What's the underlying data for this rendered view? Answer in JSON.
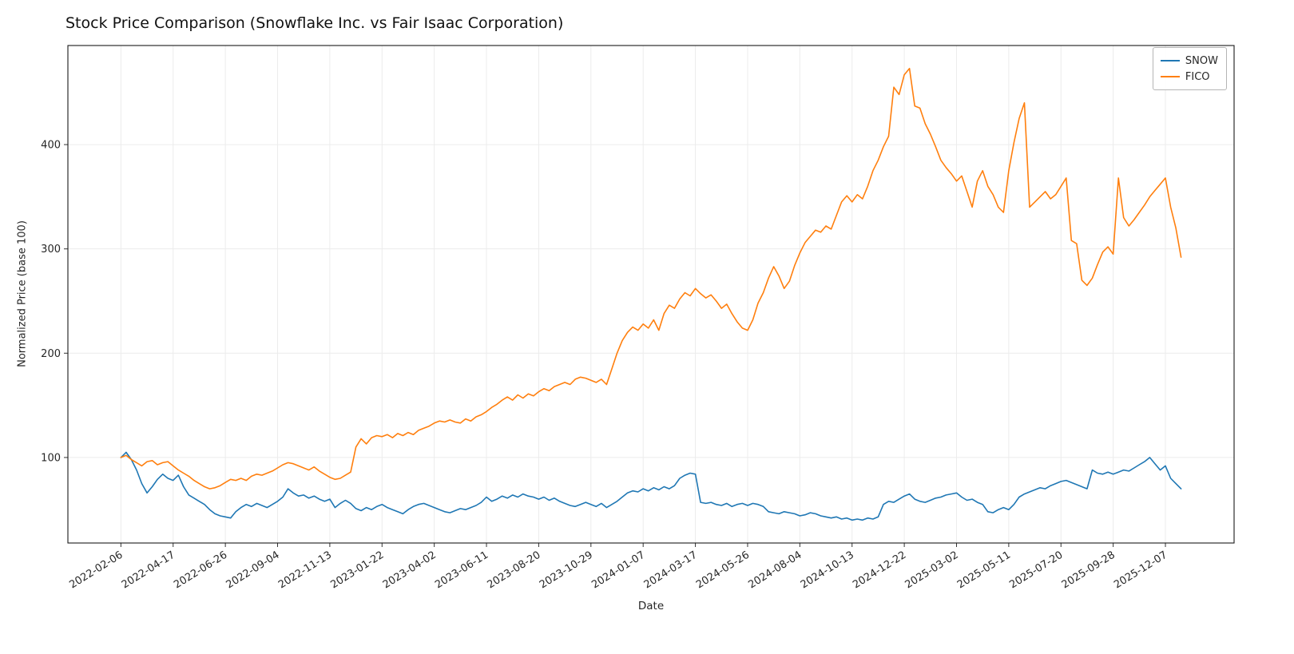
{
  "chart_data": {
    "type": "line",
    "title": "Stock Price Comparison (Snowflake Inc. vs Fair Isaac Corporation)",
    "xlabel": "Date",
    "ylabel": "Normalized Price (base 100)",
    "grid": true,
    "legend_position": "upper right",
    "ylim": [
      18,
      495
    ],
    "y_ticks": [
      100,
      200,
      300,
      400
    ],
    "x_tick_step": 10,
    "x_tick_labels": [
      "2022-02-06",
      "2022-04-17",
      "2022-06-26",
      "2022-09-04",
      "2022-11-13",
      "2023-01-22",
      "2023-04-02",
      "2023-06-11",
      "2023-08-20",
      "2023-10-29",
      "2024-01-07",
      "2024-03-17",
      "2024-05-26",
      "2024-08-04",
      "2024-10-13",
      "2024-12-22",
      "2025-03-02",
      "2025-05-11",
      "2025-07-20",
      "2025-09-28",
      "2025-12-07"
    ],
    "series": [
      {
        "name": "SNOW",
        "color": "#1f77b4",
        "values": [
          100,
          105,
          98,
          88,
          75,
          66,
          72,
          79,
          84,
          80,
          78,
          83,
          72,
          64,
          61,
          58,
          55,
          50,
          46,
          44,
          43,
          42,
          48,
          52,
          55,
          53,
          56,
          54,
          52,
          55,
          58,
          62,
          70,
          66,
          63,
          64,
          61,
          63,
          60,
          58,
          60,
          52,
          56,
          59,
          56,
          51,
          49,
          52,
          50,
          53,
          55,
          52,
          50,
          48,
          46,
          50,
          53,
          55,
          56,
          54,
          52,
          50,
          48,
          47,
          49,
          51,
          50,
          52,
          54,
          57,
          62,
          58,
          60,
          63,
          61,
          64,
          62,
          65,
          63,
          62,
          60,
          62,
          59,
          61,
          58,
          56,
          54,
          53,
          55,
          57,
          55,
          53,
          56,
          52,
          55,
          58,
          62,
          66,
          68,
          67,
          70,
          68,
          71,
          69,
          72,
          70,
          73,
          80,
          83,
          85,
          84,
          57,
          56,
          57,
          55,
          54,
          56,
          53,
          55,
          56,
          54,
          56,
          55,
          53,
          48,
          47,
          46,
          48,
          47,
          46,
          44,
          45,
          47,
          46,
          44,
          43,
          42,
          43,
          41,
          42,
          40,
          41,
          40,
          42,
          41,
          43,
          55,
          58,
          57,
          60,
          63,
          65,
          60,
          58,
          57,
          59,
          61,
          62,
          64,
          65,
          66,
          62,
          59,
          60,
          57,
          55,
          48,
          47,
          50,
          52,
          50,
          55,
          62,
          65,
          67,
          69,
          71,
          70,
          73,
          75,
          77,
          78,
          76,
          74,
          72,
          70,
          88,
          85,
          84,
          86,
          84,
          86,
          88,
          87,
          90,
          93,
          96,
          100,
          94,
          88,
          92,
          80,
          75,
          70
        ]
      },
      {
        "name": "FICO",
        "color": "#ff7f0e",
        "values": [
          100,
          102,
          98,
          95,
          92,
          96,
          97,
          93,
          95,
          96,
          92,
          88,
          85,
          82,
          78,
          75,
          72,
          70,
          71,
          73,
          76,
          79,
          78,
          80,
          78,
          82,
          84,
          83,
          85,
          87,
          90,
          93,
          95,
          94,
          92,
          90,
          88,
          91,
          87,
          84,
          81,
          79,
          80,
          83,
          86,
          110,
          118,
          113,
          119,
          121,
          120,
          122,
          119,
          123,
          121,
          124,
          122,
          126,
          128,
          130,
          133,
          135,
          134,
          136,
          134,
          133,
          137,
          135,
          139,
          141,
          144,
          148,
          151,
          155,
          158,
          155,
          160,
          157,
          161,
          159,
          163,
          166,
          164,
          168,
          170,
          172,
          170,
          175,
          177,
          176,
          174,
          172,
          175,
          170,
          185,
          200,
          212,
          220,
          225,
          222,
          228,
          224,
          232,
          222,
          238,
          246,
          243,
          252,
          258,
          255,
          262,
          257,
          253,
          256,
          250,
          243,
          247,
          238,
          230,
          224,
          222,
          232,
          248,
          258,
          272,
          283,
          274,
          262,
          269,
          284,
          296,
          306,
          312,
          318,
          316,
          322,
          319,
          332,
          345,
          351,
          345,
          352,
          348,
          360,
          375,
          385,
          398,
          408,
          455,
          448,
          467,
          473,
          437,
          435,
          420,
          410,
          398,
          385,
          378,
          372,
          365,
          370,
          355,
          340,
          365,
          375,
          360,
          352,
          340,
          335,
          375,
          402,
          425,
          440,
          340,
          345,
          350,
          355,
          348,
          352,
          360,
          368,
          308,
          305,
          270,
          265,
          272,
          285,
          297,
          302,
          295,
          368,
          330,
          322,
          328,
          335,
          342,
          350,
          356,
          362,
          368,
          340,
          320,
          292
        ]
      }
    ]
  }
}
